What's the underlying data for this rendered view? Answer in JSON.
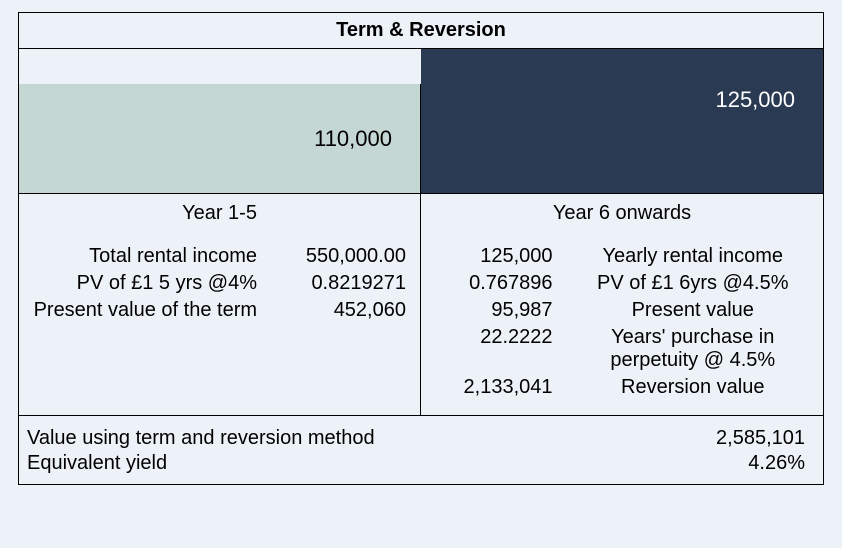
{
  "title": "Term & Reversion",
  "bars": {
    "left_value": "110,000",
    "right_value": "125,000",
    "left_bg": "#c5d7d3",
    "right_bg": "#2b3a53",
    "right_text_color": "#ffffff"
  },
  "left": {
    "period": "Year 1-5",
    "rows": [
      {
        "label": "Total rental income",
        "value": "550,000.00"
      },
      {
        "label": "PV of £1 5 yrs @4%",
        "value": "0.8219271"
      },
      {
        "label": "Present value of the term",
        "value": "452,060"
      }
    ]
  },
  "right": {
    "period": "Year 6 onwards",
    "rows": [
      {
        "value": "125,000",
        "label": "Yearly rental income"
      },
      {
        "value": "0.767896",
        "label": "PV of £1  6yrs @4.5%"
      },
      {
        "value": "95,987",
        "label": "Present value"
      },
      {
        "value": "22.2222",
        "label": "Years' purchase in perpetuity @ 4.5%"
      },
      {
        "value": "2,133,041",
        "label": "Reversion value"
      }
    ]
  },
  "summary": [
    {
      "label": "Value using term and reversion method",
      "value": "2,585,101"
    },
    {
      "label": "Equivalent yield",
      "value": "4.26%"
    }
  ],
  "colors": {
    "page_bg": "#edf2f8",
    "border": "#000000",
    "text": "#000000"
  },
  "typography": {
    "base_fontsize": 20,
    "title_weight": 700
  }
}
